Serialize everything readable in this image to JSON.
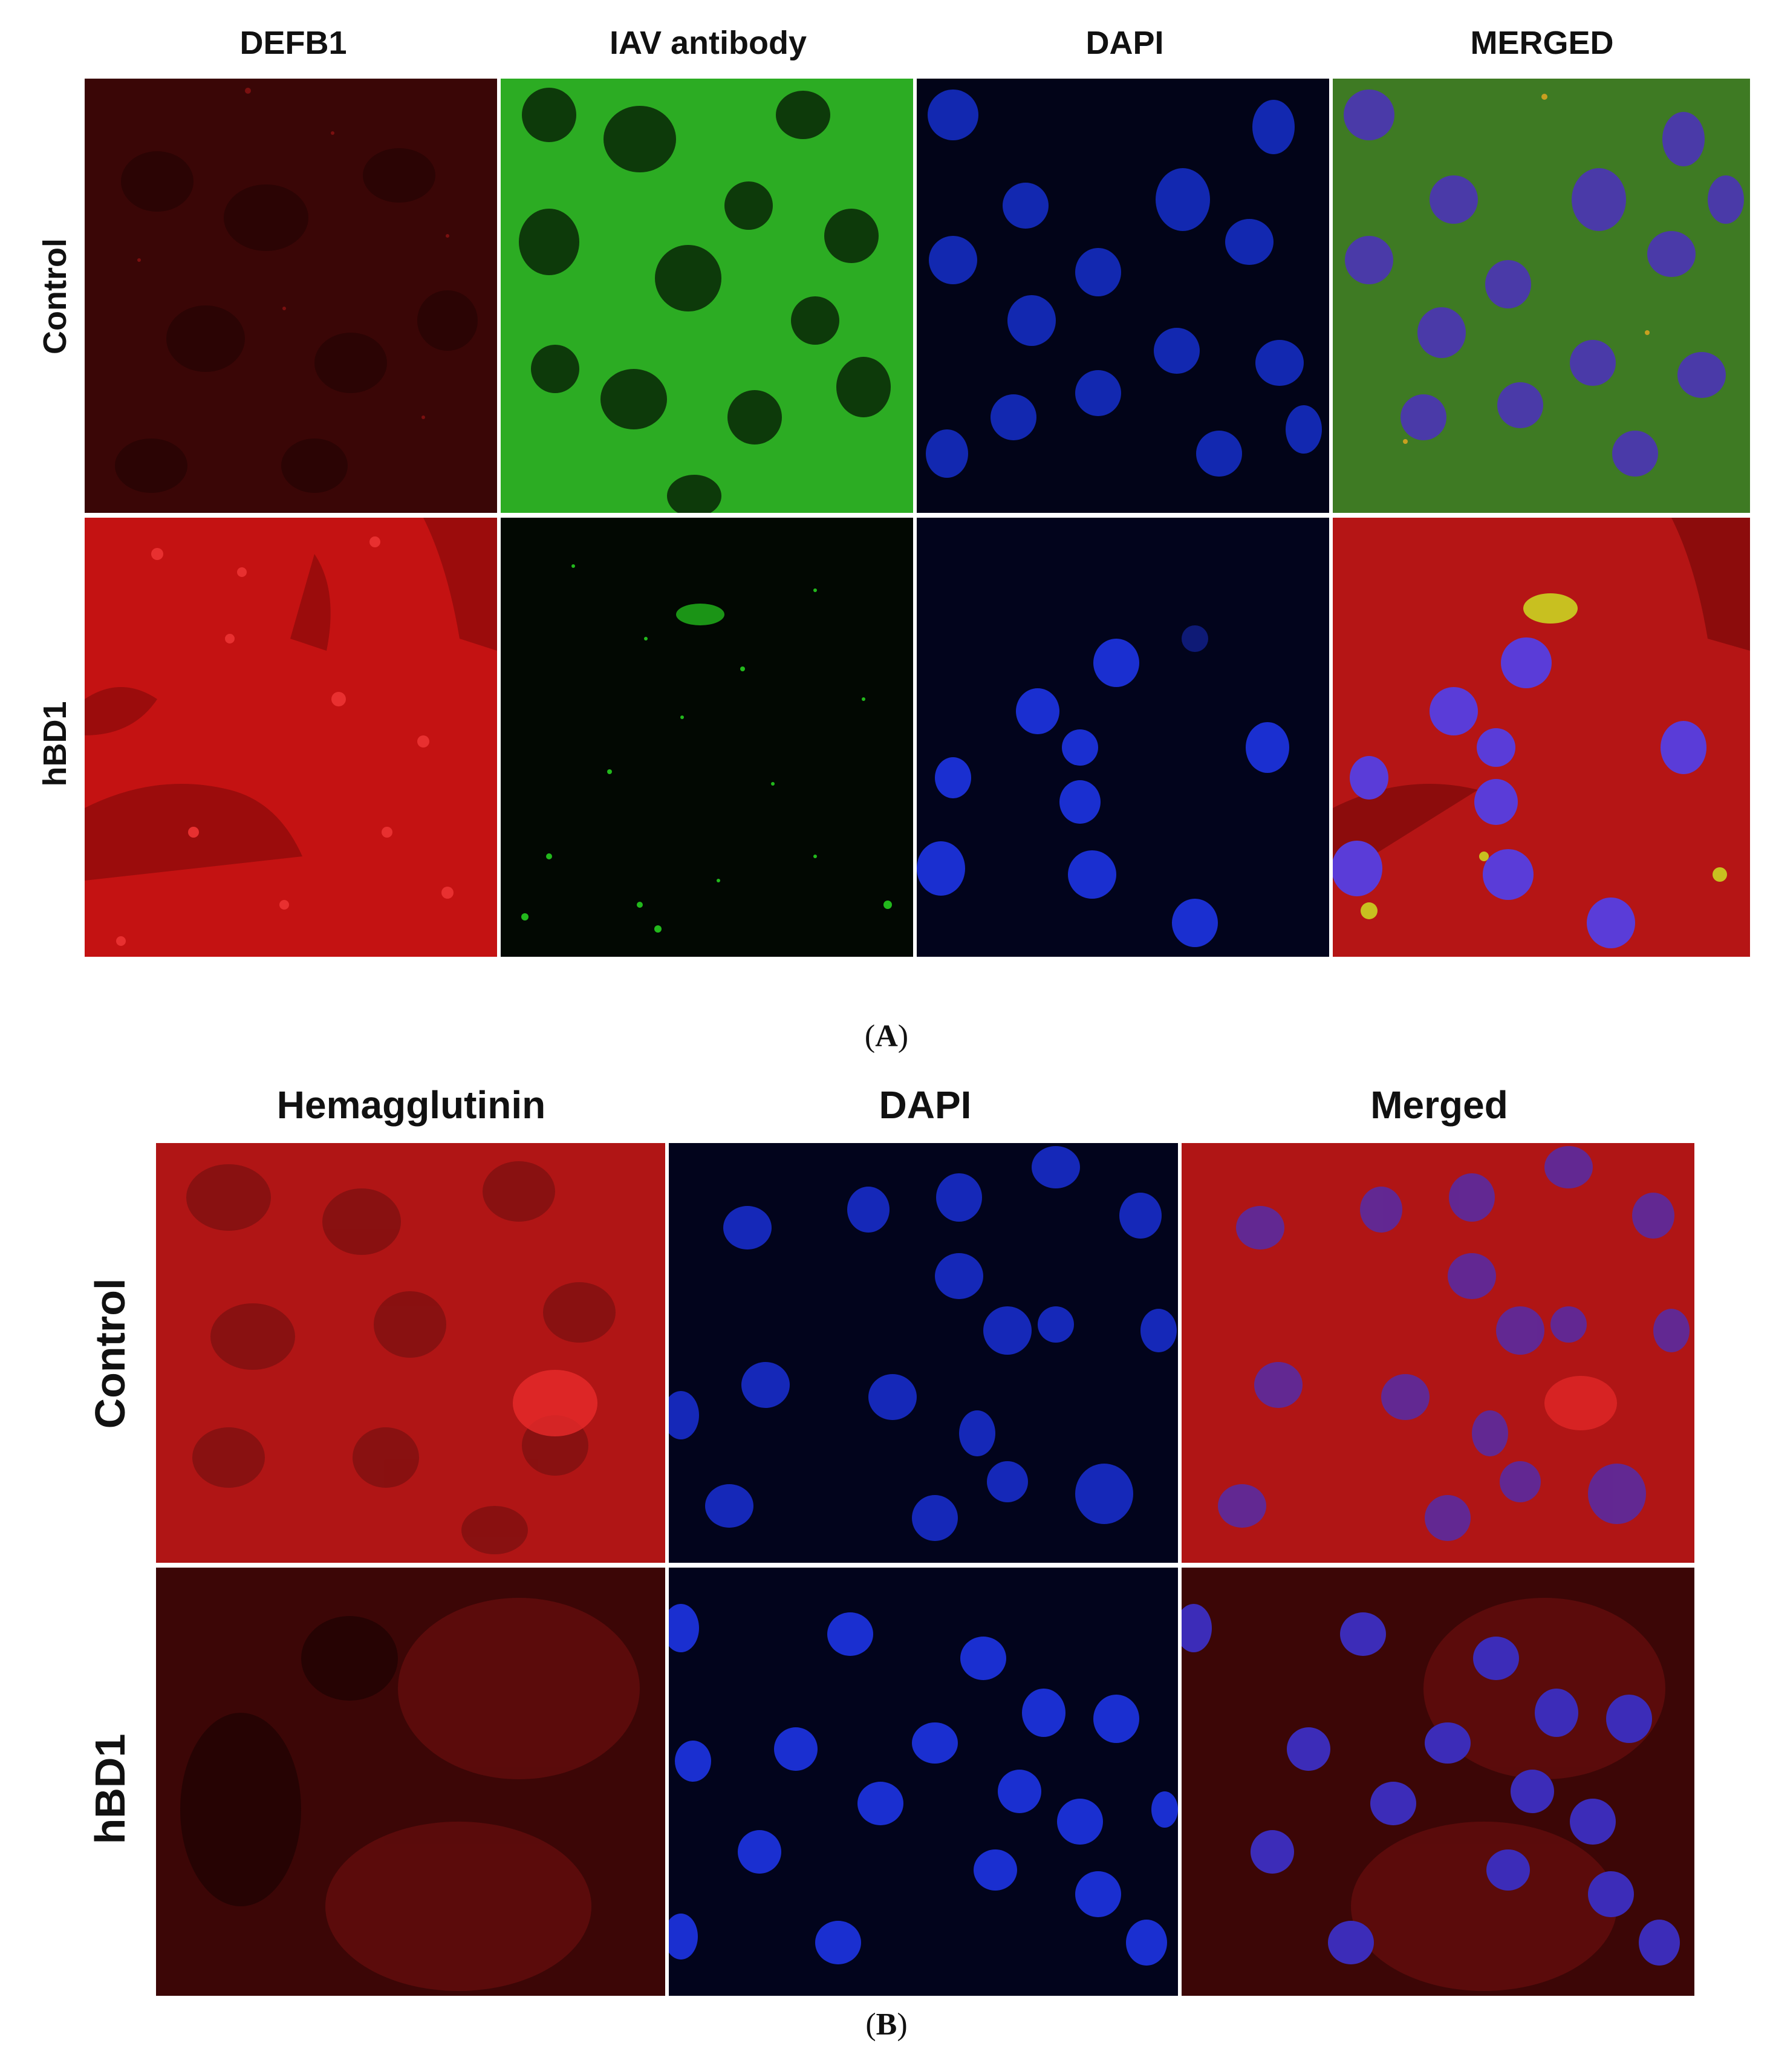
{
  "figure_a": {
    "columns": [
      "DEFB1",
      "IAV antibody",
      "DAPI",
      "MERGED"
    ],
    "rows": [
      "Control",
      "hBD1"
    ],
    "caption_letter": "A",
    "panels": [
      [
        "control-defb1",
        "control-iav",
        "control-dapi",
        "control-merged"
      ],
      [
        "hbd1-defb1",
        "hbd1-iav",
        "hbd1-dapi",
        "hbd1-merged"
      ]
    ]
  },
  "figure_b": {
    "columns": [
      "Hemagglutinin",
      "DAPI",
      "Merged"
    ],
    "rows": [
      "Control",
      "hBD1"
    ],
    "caption_letter": "B",
    "panels": [
      [
        "control-hemagglutinin",
        "control-dapi",
        "control-merged"
      ],
      [
        "hbd1-hemagglutinin",
        "hbd1-dapi",
        "hbd1-merged"
      ]
    ]
  },
  "colors": {
    "red_dim": "#3a0606",
    "red_bright": "#c41212",
    "green_bright": "#22b81c",
    "green_dim": "#020802",
    "blue_bg": "#020418",
    "nucleus_blue": "#1a2fd0",
    "merged_bg_green": "#2f8f25",
    "merged_bg_red": "#b51515",
    "nucleus_purple": "#5a3cd8"
  }
}
